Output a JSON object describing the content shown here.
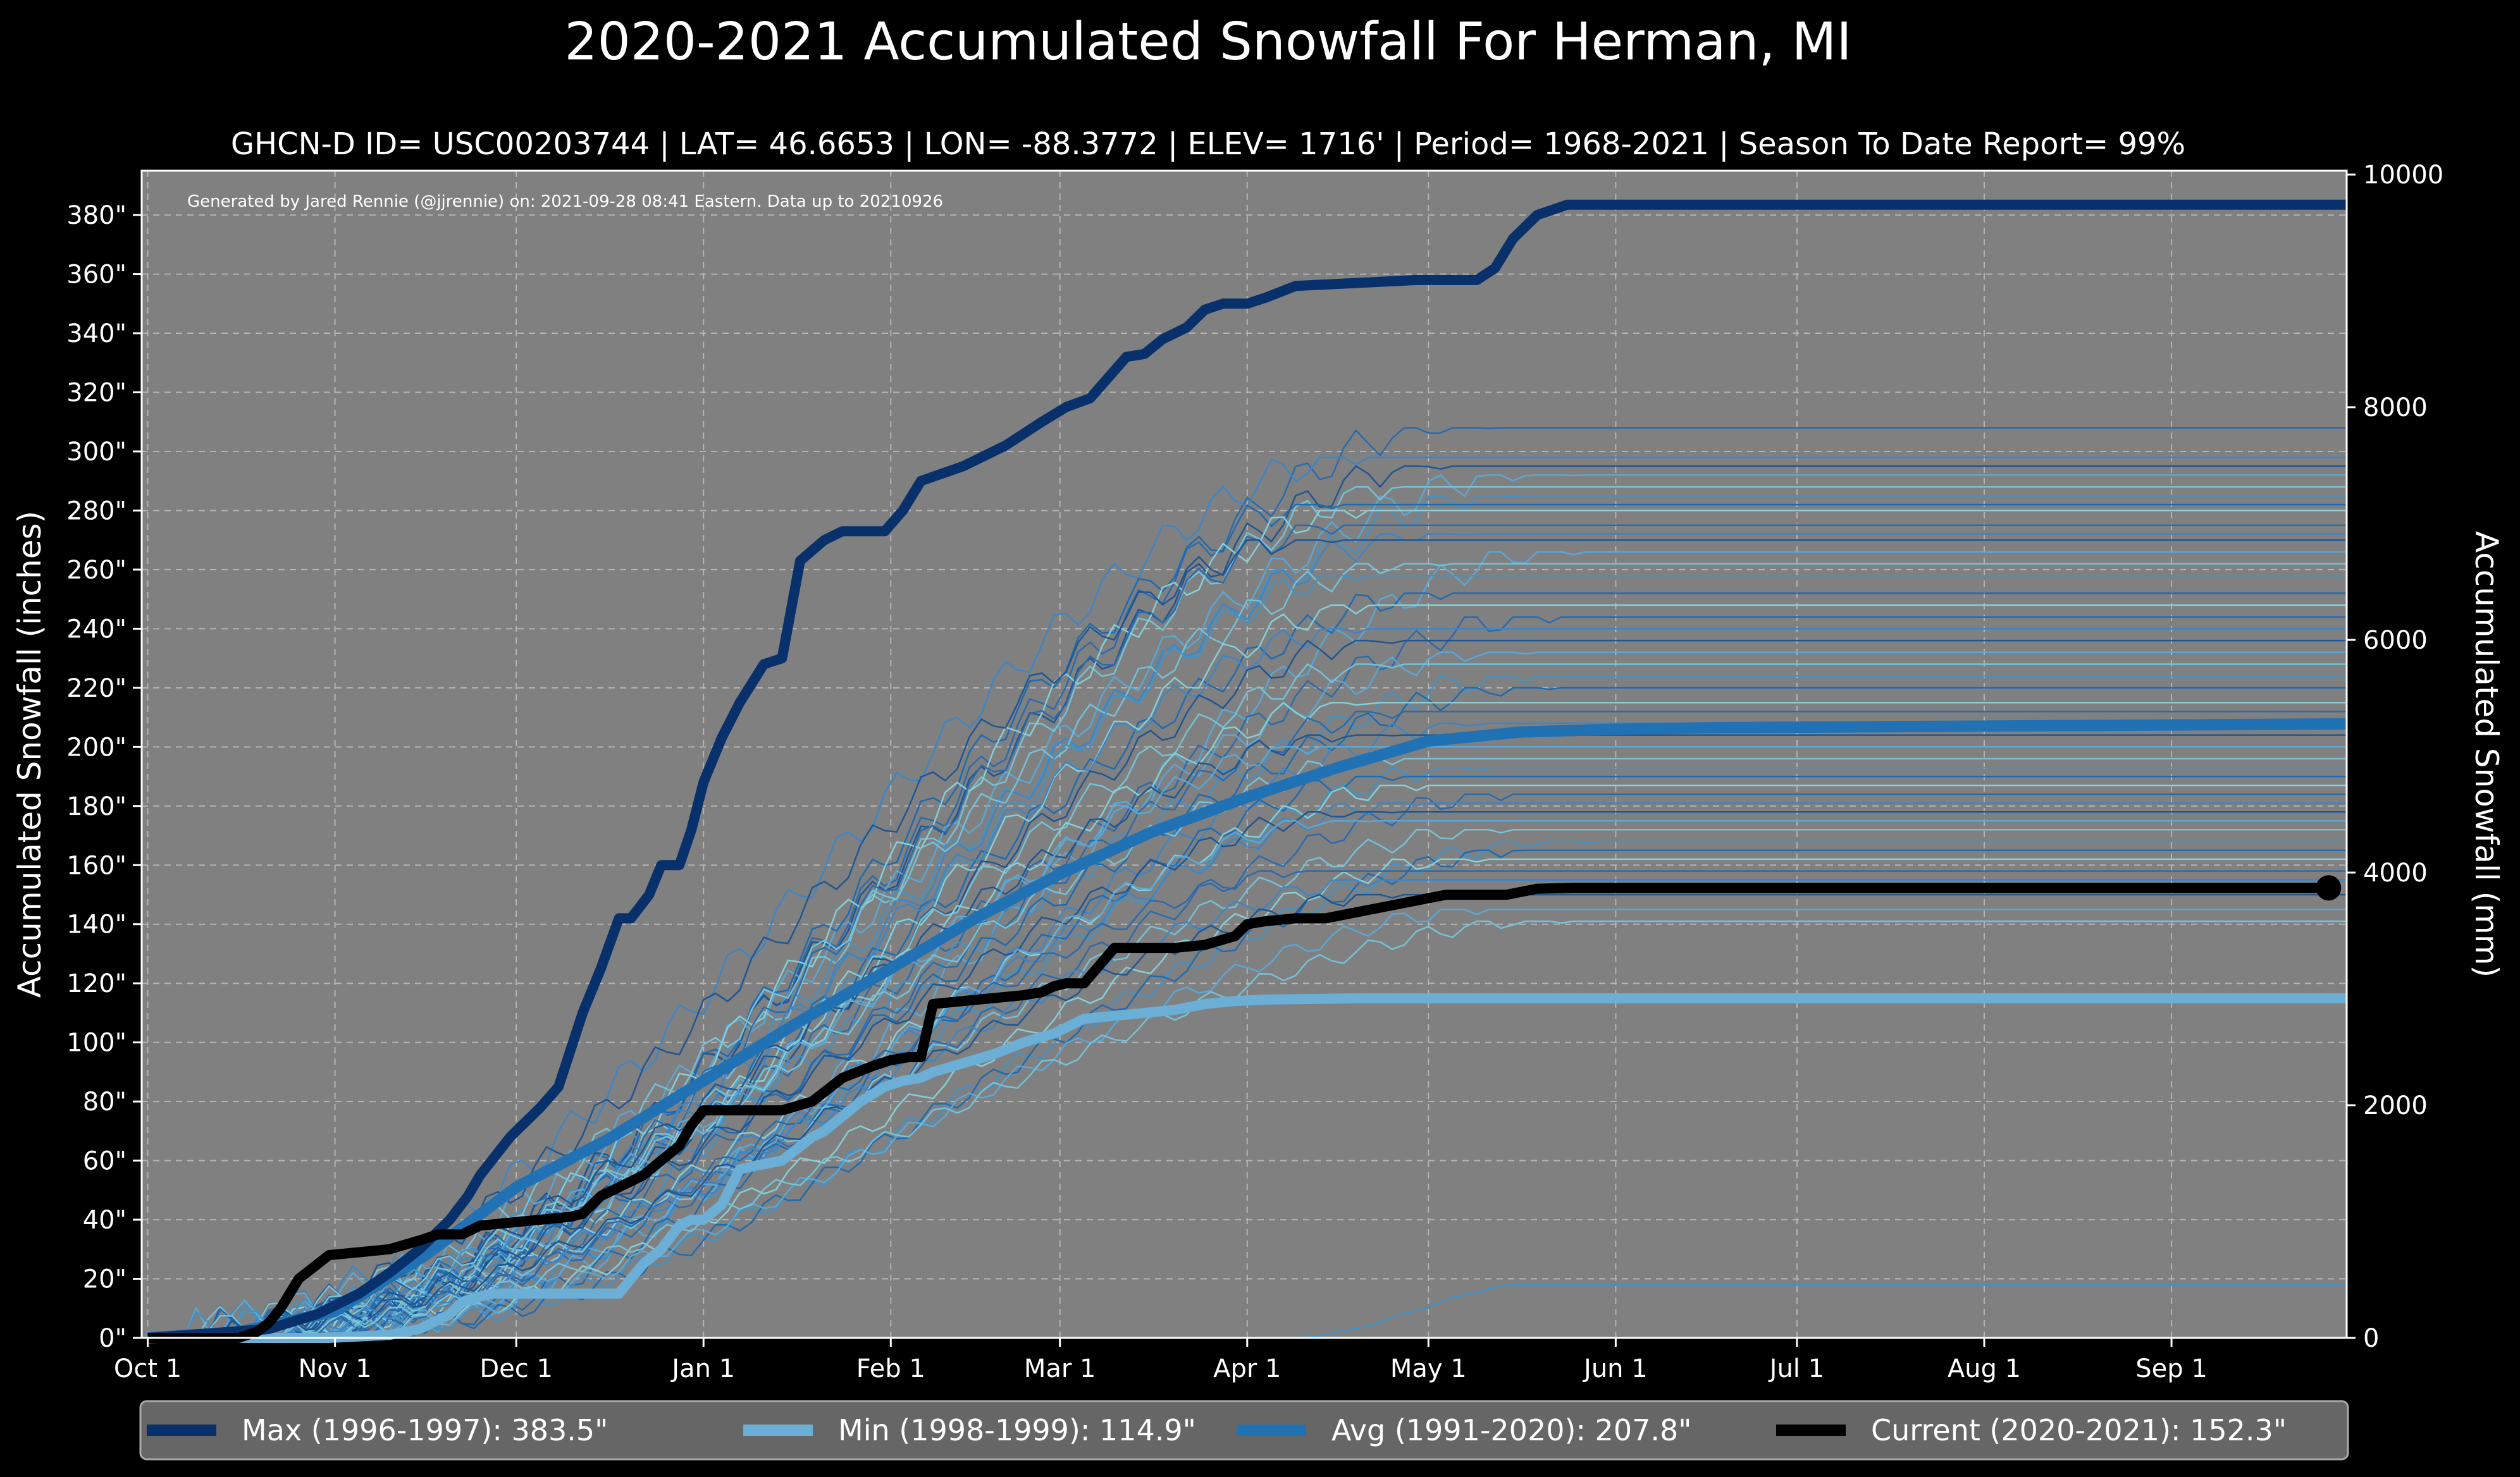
{
  "chart_data": {
    "type": "line",
    "title": "2020-2021 Accumulated Snowfall For Herman, MI",
    "subtitle": "GHCN-D ID= USC00203744 | LAT= 46.6653 | LON= -88.3772 | ELEV= 1716' | Period= 1968-2021 | Season To Date Report= 99%",
    "credit": "Generated by Jared Rennie (@jjrennie) on: 2021-09-28 08:41 Eastern. Data up to 20210926",
    "ylabel": "Accumulated Snowfall (inches)",
    "y2label": "Accumulated Snowfall (mm)",
    "ylim": [
      0,
      395
    ],
    "y2lim": [
      0,
      10033
    ],
    "xlim": [
      -1,
      364
    ],
    "grid": true,
    "yticks": [
      0,
      20,
      40,
      60,
      80,
      100,
      120,
      140,
      160,
      180,
      200,
      220,
      240,
      260,
      280,
      300,
      320,
      340,
      360,
      380
    ],
    "ytick_labels": [
      "0\"",
      "20\"",
      "40\"",
      "60\"",
      "80\"",
      "100\"",
      "120\"",
      "140\"",
      "160\"",
      "180\"",
      "200\"",
      "220\"",
      "240\"",
      "260\"",
      "280\"",
      "300\"",
      "320\"",
      "340\"",
      "360\"",
      "380\""
    ],
    "y2ticks": [
      0,
      2000,
      4000,
      6000,
      8000,
      10000
    ],
    "y2tick_labels": [
      "0",
      "2000",
      "4000",
      "6000",
      "8000",
      "10000"
    ],
    "xticks": [
      0,
      31,
      61,
      92,
      123,
      151,
      182,
      212,
      243,
      273,
      304,
      335
    ],
    "xtick_labels": [
      "Oct 1",
      "Nov 1",
      "Dec 1",
      "Jan 1",
      "Feb 1",
      "Mar 1",
      "Apr 1",
      "May 1",
      "Jun 1",
      "Jul 1",
      "Aug 1",
      "Sep 1"
    ],
    "legend_position": "bottom",
    "series": [
      {
        "name": "Max (1996-1997)",
        "legend": "Max (1996-1997):  383.5\"",
        "color": "#08306b",
        "x": [
          0,
          20,
          28,
          35,
          40,
          45,
          50,
          53,
          55,
          60,
          65,
          68,
          72,
          75,
          78,
          80,
          83,
          85,
          88,
          90,
          92,
          95,
          98,
          102,
          105,
          108,
          112,
          115,
          118,
          122,
          125,
          128,
          135,
          138,
          142,
          145,
          148,
          152,
          156,
          162,
          165,
          168,
          172,
          175,
          178,
          182,
          185,
          190,
          200,
          210,
          220,
          223,
          226,
          230,
          235,
          364
        ],
        "y": [
          0,
          3,
          8,
          15,
          22,
          30,
          40,
          48,
          55,
          68,
          78,
          85,
          110,
          125,
          142,
          142,
          150,
          160,
          160,
          172,
          188,
          203,
          215,
          228,
          230,
          263,
          270,
          273,
          273,
          273,
          280,
          290,
          295,
          298,
          302,
          306,
          310,
          315,
          318,
          332,
          333,
          338,
          342,
          348,
          350,
          350,
          352,
          356,
          357,
          358,
          358,
          362,
          372,
          380,
          383.5,
          383.5
        ]
      },
      {
        "name": "Min (1998-1999)",
        "legend": "Min (1998-1999):  114.9\"",
        "color": "#6baed6",
        "x": [
          0,
          30,
          40,
          45,
          50,
          52,
          55,
          57,
          62,
          70,
          78,
          80,
          82,
          85,
          88,
          90,
          92,
          95,
          98,
          100,
          105,
          110,
          112,
          115,
          118,
          122,
          125,
          128,
          130,
          135,
          140,
          145,
          150,
          152,
          155,
          160,
          165,
          170,
          175,
          180,
          185,
          200,
          364
        ],
        "y": [
          0,
          0,
          1,
          3,
          8,
          12,
          14,
          15,
          15,
          15,
          15,
          20,
          25,
          30,
          38,
          40,
          40,
          45,
          57,
          58,
          60,
          68,
          70,
          75,
          80,
          85,
          87,
          88,
          90,
          93,
          96,
          100,
          103,
          105,
          108,
          109,
          110,
          111,
          113,
          114,
          114.5,
          114.9,
          114.9
        ]
      },
      {
        "name": "Avg (1991-2020)",
        "legend": "Avg (1991-2020):  207.8\"",
        "color": "#2171b5",
        "x": [
          0,
          15,
          31,
          46,
          61,
          76,
          92,
          107,
          123,
          137,
          151,
          166,
          182,
          197,
          212,
          227,
          243,
          260,
          300,
          364
        ],
        "y": [
          0,
          2,
          9,
          28,
          51,
          67,
          87,
          106,
          125,
          142,
          157,
          171,
          183,
          193,
          202,
          205,
          206,
          206.5,
          207,
          207.8
        ]
      },
      {
        "name": "Current (2020-2021)",
        "legend": "Current (2020-2021):  152.3\"",
        "color": "#000000",
        "x": [
          0,
          15,
          18,
          20,
          22,
          25,
          30,
          35,
          40,
          45,
          48,
          52,
          55,
          60,
          65,
          70,
          72,
          75,
          78,
          82,
          85,
          88,
          90,
          92,
          95,
          100,
          105,
          110,
          115,
          120,
          123,
          126,
          128,
          130,
          135,
          140,
          145,
          148,
          150,
          152,
          155,
          160,
          165,
          170,
          175,
          180,
          182,
          185,
          190,
          195,
          200,
          205,
          210,
          215,
          220,
          225,
          230,
          236,
          260,
          300,
          361
        ],
        "y": [
          0,
          0,
          2,
          5,
          10,
          20,
          28,
          29,
          30,
          33,
          35,
          35,
          38,
          39,
          40,
          41,
          42,
          48,
          51,
          55,
          60,
          65,
          72,
          77,
          77,
          77,
          77,
          80,
          88,
          92,
          94,
          95,
          95,
          113,
          114,
          115,
          116,
          117,
          119,
          120,
          120,
          132,
          132,
          132,
          133,
          136,
          140,
          141,
          142,
          142,
          144,
          146,
          148,
          150,
          150,
          150,
          152,
          152.3,
          152.3,
          152.3,
          152.3
        ]
      }
    ],
    "background_seasons": {
      "description": "historical season traces",
      "finals": [
        308,
        298,
        295,
        292,
        288,
        285,
        282,
        280,
        275,
        272,
        270,
        266,
        262,
        258,
        252,
        248,
        244,
        240,
        236,
        232,
        228,
        224,
        220,
        215,
        212,
        208,
        204,
        200,
        196,
        193,
        190,
        187,
        184,
        181,
        178,
        175,
        172,
        168,
        165,
        162,
        158,
        155,
        150,
        145,
        141,
        18
      ]
    }
  }
}
